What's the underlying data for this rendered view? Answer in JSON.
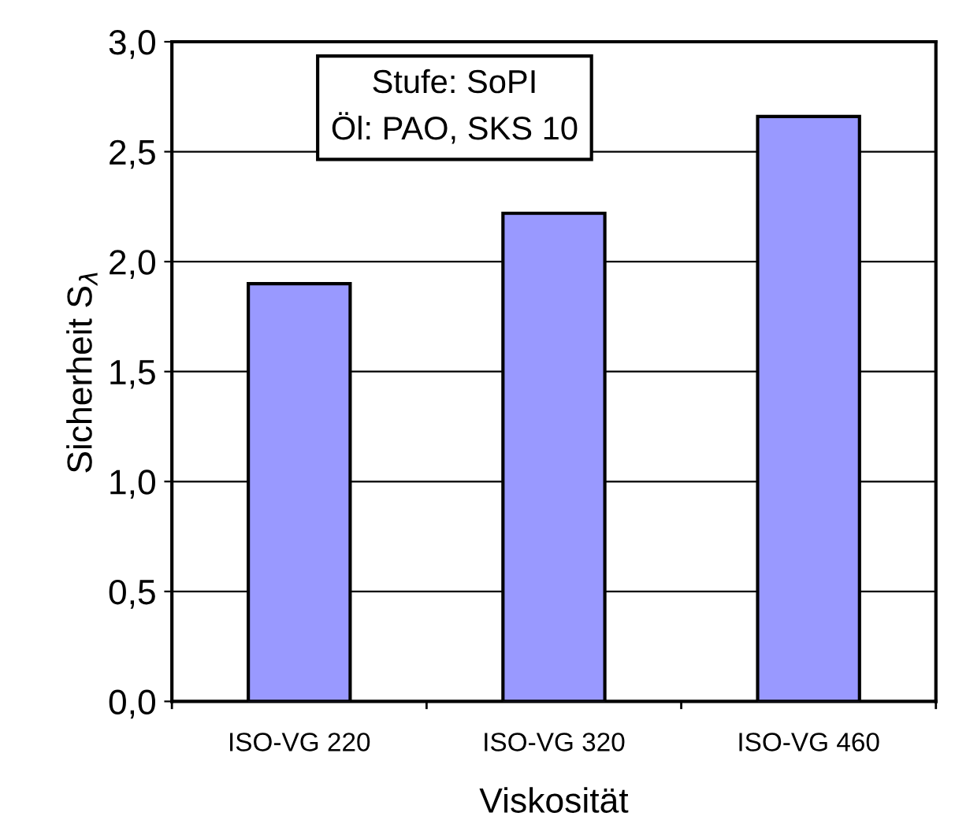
{
  "chart_data": {
    "type": "bar",
    "xlabel": "Viskosität",
    "ylabel": "Sicherheit S$_{λ}$",
    "categories": [
      "ISO-VG 220",
      "ISO-VG 320",
      "ISO-VG 460"
    ],
    "values": [
      1.9,
      2.22,
      2.66
    ],
    "color": "#9999ff",
    "ylim": [
      0,
      3
    ],
    "yticks": [
      {
        "value": 0,
        "label": "0,0"
      },
      {
        "value": 0.5,
        "label": "0,5"
      },
      {
        "value": 1,
        "label": "1,0"
      },
      {
        "value": 1.5,
        "label": "1,5"
      },
      {
        "value": 2,
        "label": "2,0"
      },
      {
        "value": 2.5,
        "label": "2,5"
      },
      {
        "value": 3,
        "label": "3,0"
      }
    ],
    "grid": "y",
    "annotations": [
      "Stufe: SoPI\nÖl: PAO, SKS 10"
    ]
  }
}
